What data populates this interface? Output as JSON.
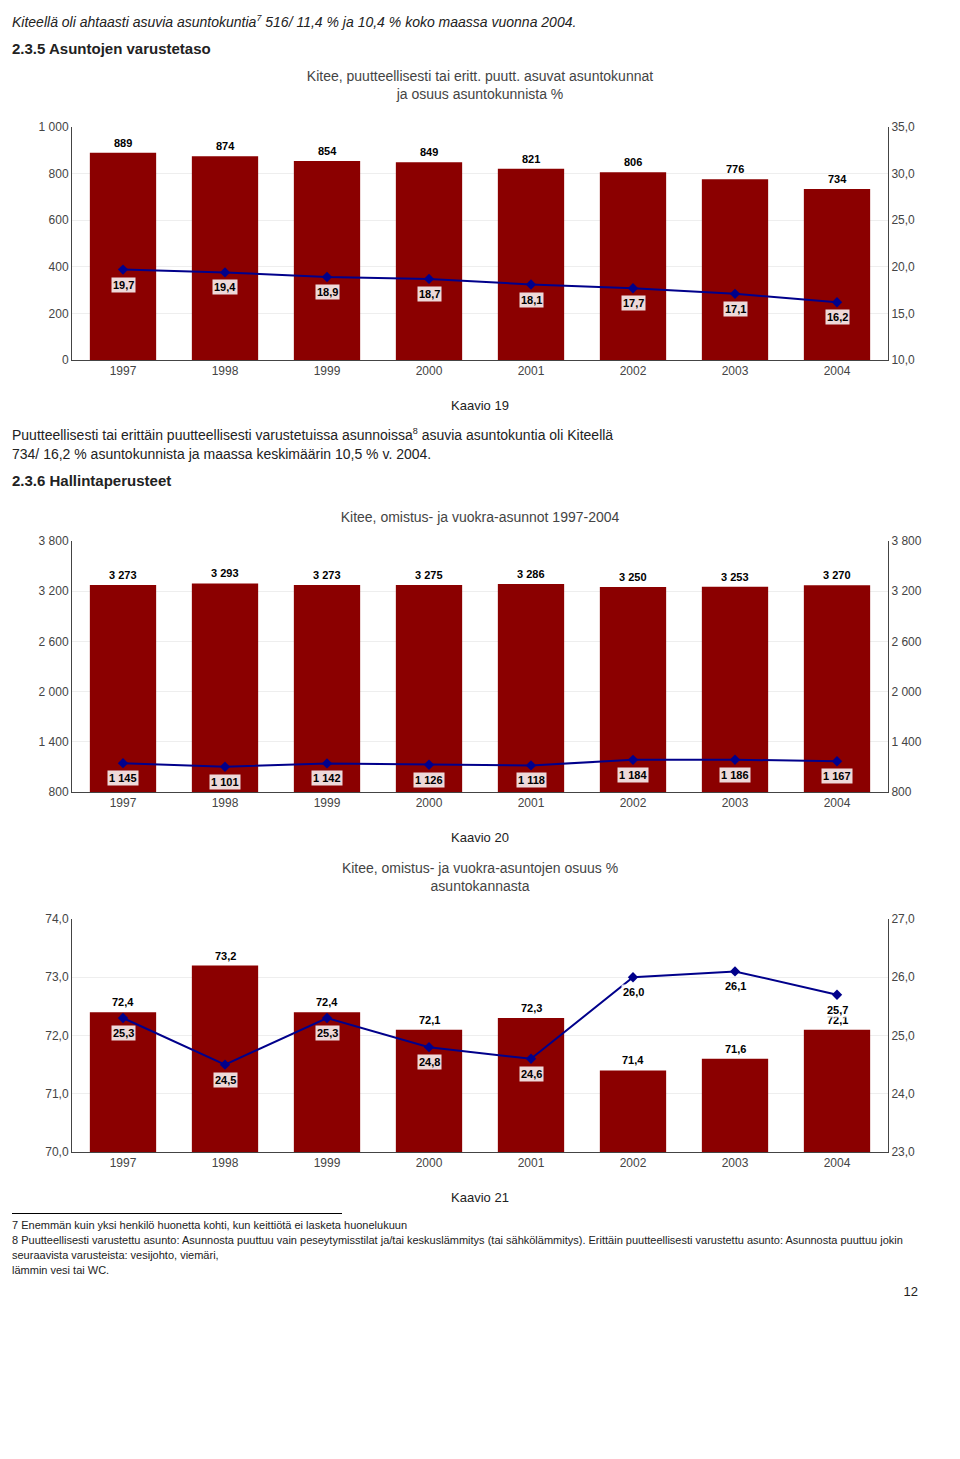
{
  "header": [
    "Kiteellä oli ahtaasti asuvia asuntokuntia",
    {
      "sup": "7"
    },
    " 516/ 11,4 % ja 10,4 % koko maassa vuonna 2004."
  ],
  "chart_data": [
    {
      "type": "bar",
      "section_title": "2.3.5   Asuntojen varustetaso",
      "title": "Kitee, puutteellisesti tai eritt. puutt. asuvat asuntokunnat",
      "subtitle": "ja osuus asuntokunnista %",
      "categories": [
        "1997",
        "1998",
        "1999",
        "2000",
        "2001",
        "2002",
        "2003",
        "2004"
      ],
      "series": [
        {
          "type": "bar",
          "color": "#8B0000",
          "values": [
            889,
            874,
            854,
            849,
            821,
            806,
            776,
            734
          ]
        },
        {
          "type": "line",
          "axis": "y2",
          "color": "#00008B",
          "marker": "diamond",
          "values": [
            19.7,
            19.4,
            18.9,
            18.7,
            18.1,
            17.7,
            17.1,
            16.2
          ],
          "value_labels": [
            "19,7",
            "19,4",
            "18,9",
            "18,7",
            "18,1",
            "17,7",
            "17,1",
            "16,2"
          ]
        }
      ],
      "ylim": [
        0,
        1000
      ],
      "yticks": [
        0,
        200,
        400,
        600,
        800,
        {
          "value": 1000,
          "label": "1 000"
        }
      ],
      "y2lim": [
        10.0,
        35.0
      ],
      "y2ticks": [
        {
          "value": 10.0,
          "label": "10,0"
        },
        {
          "value": 15.0,
          "label": "15,0"
        },
        {
          "value": 20.0,
          "label": "20,0"
        },
        {
          "value": 25.0,
          "label": "25,0"
        },
        {
          "value": 30.0,
          "label": "30,0"
        },
        {
          "value": 35.0,
          "label": "35,0"
        }
      ],
      "grid": true,
      "data_labels": true,
      "caption": "Kaavio 19",
      "text_after": [
        [
          "Puutteellisesti tai erittäin puutteellisesti varustetuissa asunnoissa",
          {
            "sup": "8"
          },
          " asuvia asuntokuntia oli Kiteellä"
        ],
        [
          "734/ 16,2 % asuntokunnista ja maassa keskimäärin 10,5 % v. 2004."
        ]
      ]
    },
    {
      "type": "bar",
      "section_title": "2.3.6   Hallintaperusteet",
      "title": "Kitee, omistus- ja vuokra-asunnot 1997-2004",
      "categories": [
        "1997",
        "1998",
        "1999",
        "2000",
        "2001",
        "2002",
        "2003",
        "2004"
      ],
      "series": [
        {
          "type": "bar",
          "color": "#8B0000",
          "values": [
            3273,
            3293,
            3273,
            3275,
            3286,
            3250,
            3253,
            3270
          ],
          "value_labels": [
            "3 273",
            "3 293",
            "3 273",
            "3 275",
            "3 286",
            "3 250",
            "3 253",
            "3 270"
          ]
        },
        {
          "type": "line",
          "axis": "y2",
          "color": "#00008B",
          "marker": "diamond",
          "values": [
            1145,
            1101,
            1142,
            1126,
            1118,
            1184,
            1186,
            1167
          ],
          "value_labels": [
            "1 145",
            "1 101",
            "1 142",
            "1 126",
            "1 118",
            "1 184",
            "1 186",
            "1 167"
          ]
        }
      ],
      "ylim": [
        800,
        3800
      ],
      "yticks": [
        800,
        {
          "value": 1400,
          "label": "1 400"
        },
        {
          "value": 2000,
          "label": "2 000"
        },
        {
          "value": 2600,
          "label": "2 600"
        },
        {
          "value": 3200,
          "label": "3 200"
        },
        {
          "value": 3800,
          "label": "3 800"
        }
      ],
      "y2lim": [
        800,
        3800
      ],
      "y2ticks": [
        800,
        {
          "value": 1400,
          "label": "1 400"
        },
        {
          "value": 2000,
          "label": "2 000"
        },
        {
          "value": 2600,
          "label": "2 600"
        },
        {
          "value": 3200,
          "label": "3 200"
        },
        {
          "value": 3800,
          "label": "3 800"
        }
      ],
      "grid": true,
      "data_labels": true,
      "caption": "Kaavio 20"
    },
    {
      "type": "bar",
      "title": "Kitee, omistus- ja vuokra-asuntojen osuus %",
      "subtitle": "asuntokannasta",
      "categories": [
        "1997",
        "1998",
        "1999",
        "2000",
        "2001",
        "2002",
        "2003",
        "2004"
      ],
      "series": [
        {
          "type": "bar",
          "color": "#8B0000",
          "values": [
            72.4,
            73.2,
            72.4,
            72.1,
            72.3,
            71.4,
            71.6,
            72.1
          ],
          "value_labels": [
            "72,4",
            "73,2",
            "72,4",
            "72,1",
            "72,3",
            "71,4",
            "71,6",
            "72,1"
          ]
        },
        {
          "type": "line",
          "axis": "y2",
          "color": "#00008B",
          "marker": "diamond",
          "values": [
            25.3,
            24.5,
            25.3,
            24.8,
            24.6,
            26.0,
            26.1,
            25.7
          ],
          "value_labels": [
            "25,3",
            "24,5",
            "25,3",
            "24,8",
            "24,6",
            "26,0",
            "26,1",
            "25,7"
          ]
        }
      ],
      "ylim": [
        70.0,
        74.0
      ],
      "yticks": [
        {
          "value": 70.0,
          "label": "70,0"
        },
        {
          "value": 71.0,
          "label": "71,0"
        },
        {
          "value": 72.0,
          "label": "72,0"
        },
        {
          "value": 73.0,
          "label": "73,0"
        },
        {
          "value": 74.0,
          "label": "74,0"
        }
      ],
      "y2lim": [
        23.0,
        27.0
      ],
      "y2ticks": [
        {
          "value": 23.0,
          "label": "23,0"
        },
        {
          "value": 24.0,
          "label": "24,0"
        },
        {
          "value": 25.0,
          "label": "25,0"
        },
        {
          "value": 26.0,
          "label": "26,0"
        },
        {
          "value": 27.0,
          "label": "27,0"
        }
      ],
      "grid": true,
      "data_labels": true,
      "caption": "Kaavio 21"
    }
  ],
  "footnotes": [
    "7 Enemmän kuin yksi henkilö huonetta kohti, kun keittiötä ei lasketa huonelukuun",
    "8 Puutteellisesti varustettu asunto: Asunnosta puuttuu vain peseytymisstilat ja/tai keskuslämmitys (tai sähkölämmitys). Erittäin puutteellisesti varustettu asunto: Asunnosta puuttuu jokin seuraavista varusteista: vesijohto, viemäri,\nlämmin vesi tai WC."
  ],
  "page_number": "12"
}
